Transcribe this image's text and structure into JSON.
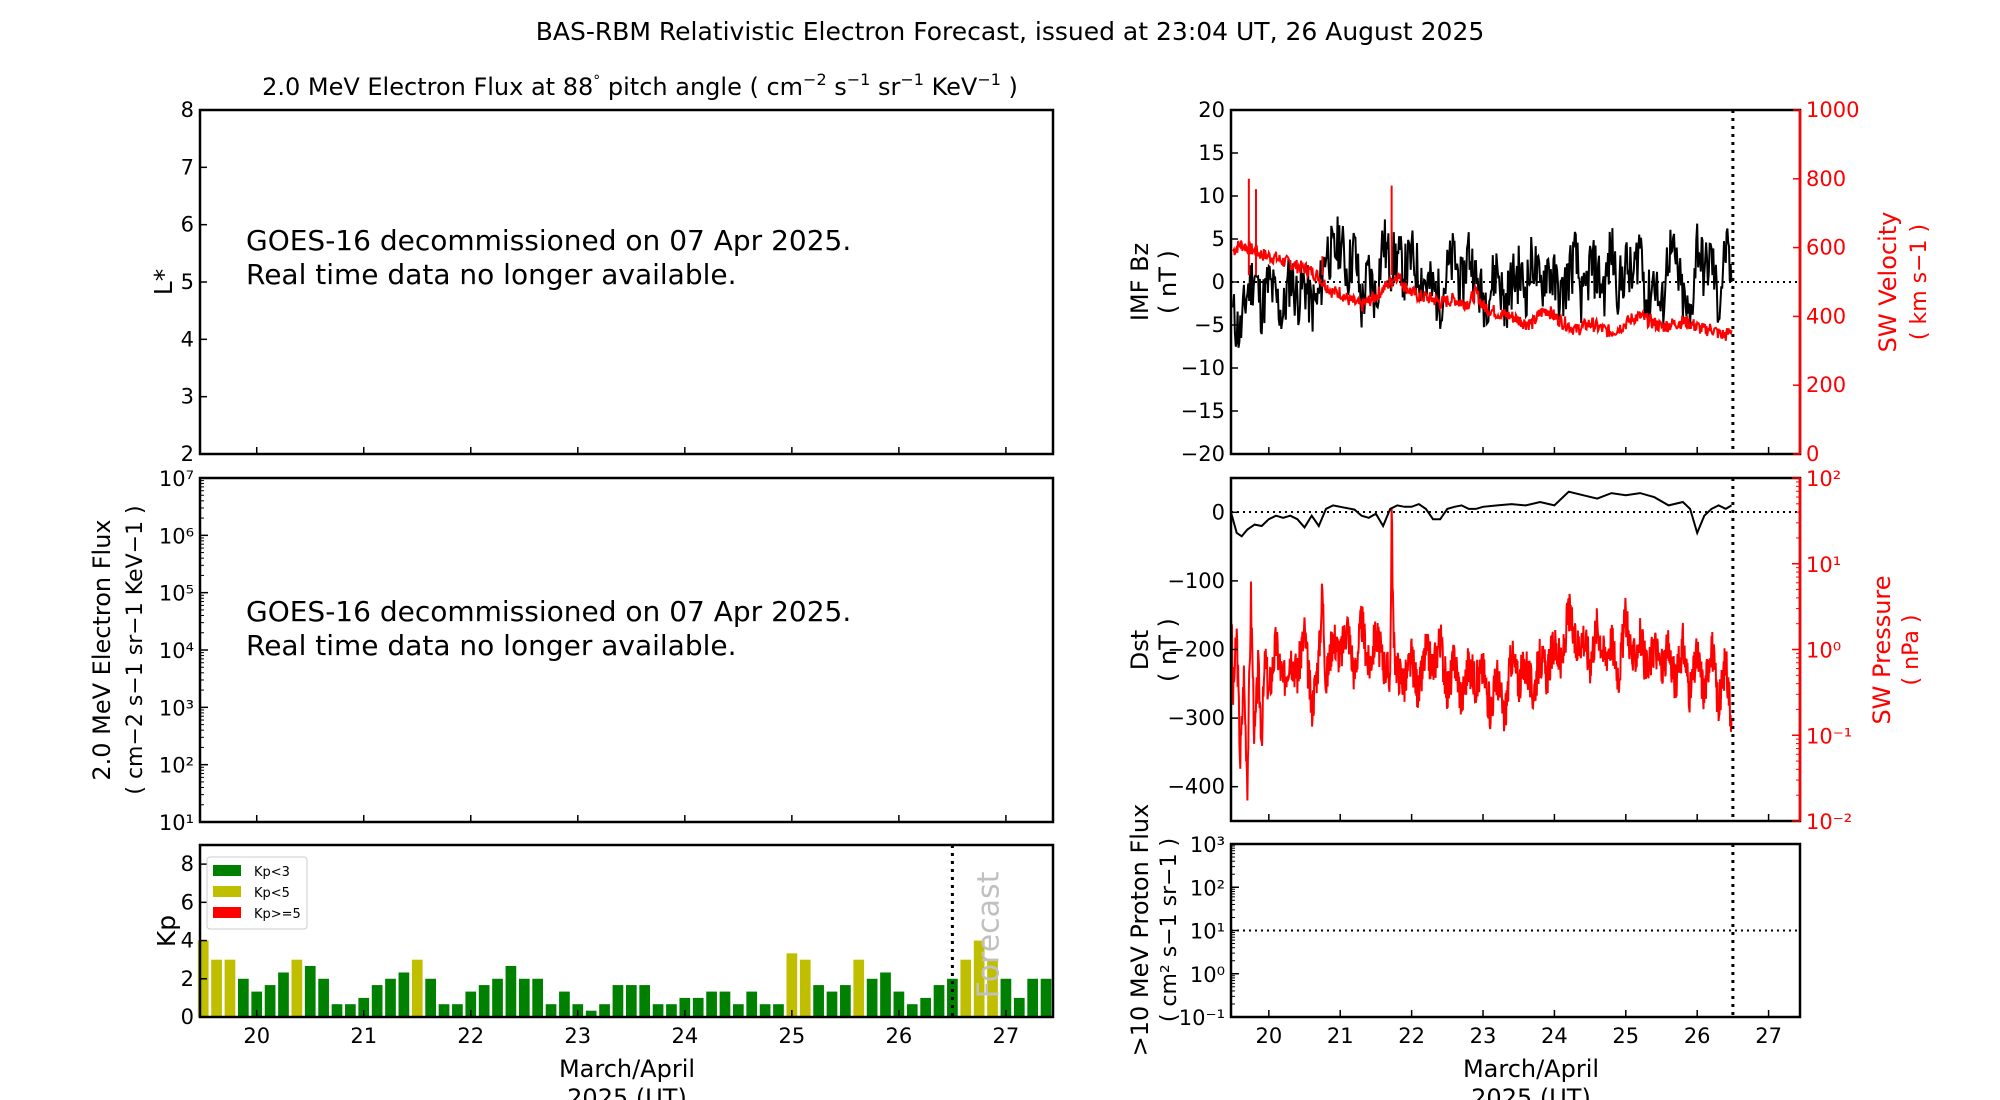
{
  "figure": {
    "title": "BAS-RBM Relativistic Electron Forecast, issued at 23:04 UT, 26 August 2025",
    "xlabel_line1": "March/April",
    "xlabel_line2": "2025 (UT)",
    "x_ticks": [
      "20",
      "21",
      "22",
      "23",
      "24",
      "25",
      "26",
      "27"
    ],
    "now_line_day": 26.5,
    "notice_line1": "GOES-16 decommissioned on 07 Apr 2025.",
    "notice_line2": "Real time data no longer available.",
    "colors": {
      "kp_low": "#008000",
      "kp_mid": "#bfbf00",
      "kp_high": "#ff0000",
      "solar_wind": "#ff0000",
      "forecast_text": "#c0c0c0"
    }
  },
  "chart_data": [
    {
      "id": "lstar",
      "type": "heatmap",
      "title_parts": [
        "2.0 MeV Electron Flux at 88",
        "°",
        " pitch angle ( cm",
        "−2",
        " s",
        "−1",
        " sr",
        "−1",
        " KeV",
        "−1",
        " )"
      ],
      "ylabel": "L*",
      "ylim": [
        2,
        8
      ],
      "yticks": [
        "2",
        "3",
        "4",
        "5",
        "6",
        "7",
        "8"
      ],
      "xlim": [
        19.47,
        27.44
      ],
      "values": []
    },
    {
      "id": "flux",
      "type": "line",
      "ylabel_line1": "2.0 MeV Electron Flux",
      "ylabel_line2": "( cm−2 s−1 sr−1 KeV−1 )",
      "yscale": "log",
      "ylim_exp": [
        1,
        7
      ],
      "yticks": [
        "10¹",
        "10²",
        "10³",
        "10⁴",
        "10⁵",
        "10⁶",
        "10⁷"
      ],
      "xlim": [
        19.47,
        27.44
      ],
      "values": []
    },
    {
      "id": "kp",
      "type": "bar",
      "ylabel": "Kp",
      "ylim": [
        0,
        9
      ],
      "yticks": [
        "0",
        "2",
        "4",
        "6",
        "8"
      ],
      "xlim": [
        19.47,
        27.44
      ],
      "bin_hours": 3,
      "start_day": 19.5,
      "values": [
        4,
        3,
        3,
        2,
        1.33,
        1.67,
        2.33,
        3,
        2.67,
        2,
        0.67,
        0.67,
        1,
        1.67,
        2,
        2.33,
        3,
        2,
        0.67,
        0.67,
        1.33,
        1.67,
        2,
        2.67,
        2,
        2,
        0.67,
        1.33,
        0.67,
        0.33,
        0.67,
        1.67,
        1.67,
        1.67,
        0.67,
        0.67,
        1,
        1,
        1.33,
        1.33,
        0.67,
        1.33,
        0.67,
        0.67,
        3.33,
        3,
        1.67,
        1.33,
        1.67,
        3,
        2,
        2.33,
        1.33,
        0.67,
        1,
        1.67,
        2,
        3,
        4,
        3,
        2,
        1,
        2,
        2
      ],
      "forecast_label": "Forecast",
      "legend": [
        {
          "label": "Kp<3",
          "color": "#008000"
        },
        {
          "label": "Kp<5",
          "color": "#bfbf00"
        },
        {
          "label": "Kp>=5",
          "color": "#ff0000"
        }
      ],
      "legend_position": "top-left"
    },
    {
      "id": "imf",
      "type": "line",
      "ylabel_line1": "IMF Bz",
      "ylabel_line2": "( nT )",
      "ylim": [
        -20,
        20
      ],
      "yticks": [
        "−20",
        "−15",
        "−10",
        "−5",
        "0",
        "5",
        "10",
        "15",
        "20"
      ],
      "y2label_line1": "SW Velocity",
      "y2label_line2": "( km s−1 )",
      "y2lim": [
        0,
        1000
      ],
      "y2ticks": [
        "0",
        "200",
        "400",
        "600",
        "800",
        "1000"
      ],
      "xlim": [
        19.47,
        27.44
      ],
      "series": [
        {
          "name": "IMF Bz",
          "color": "#000000",
          "x": [
            19.5,
            19.6,
            19.7,
            19.8,
            19.9,
            20.0,
            20.1,
            20.2,
            20.3,
            20.4,
            20.5,
            20.6,
            20.7,
            20.8,
            20.9,
            21.0,
            21.1,
            21.2,
            21.3,
            21.4,
            21.5,
            21.6,
            21.7,
            21.8,
            21.9,
            22.0,
            22.1,
            22.2,
            22.3,
            22.4,
            22.5,
            22.6,
            22.7,
            22.8,
            22.9,
            23.0,
            23.1,
            23.2,
            23.3,
            23.4,
            23.5,
            23.6,
            23.7,
            23.8,
            23.9,
            24.0,
            24.1,
            24.2,
            24.3,
            24.4,
            24.5,
            24.6,
            24.7,
            24.8,
            24.9,
            25.0,
            25.1,
            25.2,
            25.3,
            25.4,
            25.5,
            25.6,
            25.7,
            25.8,
            25.9,
            26.0,
            26.1,
            26.2,
            26.3,
            26.4,
            26.48
          ],
          "values": [
            -4,
            -6,
            -1,
            1,
            -3,
            0,
            -2,
            -4,
            1,
            -2,
            0,
            -3,
            -2,
            4,
            3,
            5,
            1,
            4,
            -3,
            1,
            -2,
            5,
            2,
            3,
            1,
            3,
            1,
            0,
            -1,
            -2,
            1,
            3,
            -1,
            4,
            0,
            -2,
            -1,
            2,
            -3,
            0,
            1,
            -1,
            3,
            -1,
            2,
            0,
            -2,
            1,
            3,
            -3,
            2,
            1,
            -1,
            4,
            -1,
            2,
            0,
            5,
            -3,
            1,
            -4,
            4,
            2,
            -2,
            -5,
            5,
            1,
            3,
            -3,
            4,
            0
          ]
        },
        {
          "name": "SW Velocity",
          "color": "#ff0000",
          "x": [
            19.5,
            19.6,
            19.7,
            19.8,
            19.9,
            20.0,
            20.1,
            20.2,
            20.3,
            20.4,
            20.5,
            20.6,
            20.7,
            20.8,
            20.9,
            21.0,
            21.1,
            21.2,
            21.3,
            21.4,
            21.5,
            21.6,
            21.7,
            21.8,
            21.9,
            22.0,
            22.1,
            22.2,
            22.3,
            22.4,
            22.5,
            22.6,
            22.7,
            22.8,
            22.9,
            23.0,
            23.1,
            23.2,
            23.3,
            23.4,
            23.5,
            23.6,
            23.7,
            23.8,
            23.9,
            24.0,
            24.1,
            24.2,
            24.3,
            24.4,
            24.5,
            24.6,
            24.7,
            24.8,
            24.9,
            25.0,
            25.1,
            25.2,
            25.3,
            25.4,
            25.5,
            25.6,
            25.7,
            25.8,
            25.9,
            26.0,
            26.1,
            26.2,
            26.3,
            26.4,
            26.48
          ],
          "values": [
            590,
            610,
            600,
            590,
            580,
            575,
            570,
            560,
            555,
            545,
            540,
            530,
            515,
            490,
            470,
            470,
            450,
            440,
            430,
            445,
            460,
            480,
            500,
            520,
            490,
            470,
            460,
            455,
            450,
            440,
            445,
            450,
            440,
            440,
            470,
            430,
            420,
            410,
            405,
            400,
            390,
            380,
            380,
            410,
            420,
            400,
            385,
            375,
            360,
            370,
            380,
            370,
            360,
            355,
            365,
            380,
            395,
            400,
            390,
            380,
            370,
            375,
            380,
            385,
            380,
            370,
            360,
            365,
            350,
            345,
            360
          ]
        },
        {
          "name": "SW Velocity spikes",
          "color": "#ff0000",
          "x": [
            19.72,
            19.82,
            20.75,
            21.72
          ],
          "values": [
            800,
            770,
            575,
            780
          ]
        }
      ]
    },
    {
      "id": "dst",
      "type": "line",
      "ylabel_line1": "Dst",
      "ylabel_line2": "( nT )",
      "ylim": [
        -450,
        50
      ],
      "yticks": [
        "−400",
        "−300",
        "−200",
        "−100",
        "0"
      ],
      "y2label_line1": "SW Pressure",
      "y2label_line2": "( nPa )",
      "y2scale": "log",
      "y2lim_exp": [
        -2,
        2
      ],
      "y2ticks": [
        "10⁻²",
        "10⁻¹",
        "10⁰",
        "10¹",
        "10²"
      ],
      "xlim": [
        19.47,
        27.44
      ],
      "series": [
        {
          "name": "Dst",
          "color": "#000000",
          "x": [
            19.47,
            19.55,
            19.62,
            19.7,
            19.8,
            19.9,
            20.0,
            20.1,
            20.2,
            20.3,
            20.4,
            20.5,
            20.6,
            20.7,
            20.8,
            20.9,
            21.0,
            21.1,
            21.2,
            21.3,
            21.4,
            21.5,
            21.6,
            21.7,
            21.8,
            21.9,
            22.0,
            22.1,
            22.2,
            22.3,
            22.4,
            22.5,
            22.6,
            22.7,
            22.8,
            22.9,
            23.0,
            23.2,
            23.4,
            23.6,
            23.8,
            24.0,
            24.2,
            24.4,
            24.6,
            24.8,
            25.0,
            25.2,
            25.4,
            25.6,
            25.8,
            25.9,
            26.0,
            26.1,
            26.2,
            26.3,
            26.4,
            26.48
          ],
          "values": [
            0,
            -30,
            -35,
            -25,
            -18,
            -20,
            -10,
            -5,
            -8,
            -5,
            -10,
            -22,
            -5,
            -20,
            5,
            10,
            8,
            6,
            4,
            -5,
            -8,
            -2,
            -20,
            5,
            10,
            8,
            8,
            12,
            5,
            -10,
            -10,
            5,
            8,
            10,
            5,
            5,
            8,
            10,
            12,
            10,
            15,
            10,
            30,
            25,
            20,
            28,
            25,
            28,
            22,
            10,
            15,
            5,
            -30,
            -5,
            5,
            10,
            5,
            10
          ]
        },
        {
          "name": "SW Pressure",
          "color": "#ff0000",
          "x": [
            19.47,
            19.5,
            19.55,
            19.6,
            19.65,
            19.7,
            19.75,
            19.8,
            19.85,
            19.9,
            19.95,
            20.0,
            20.1,
            20.2,
            20.3,
            20.4,
            20.5,
            20.6,
            20.7,
            20.75,
            20.8,
            20.9,
            21.0,
            21.1,
            21.2,
            21.3,
            21.4,
            21.5,
            21.6,
            21.7,
            21.72,
            21.75,
            21.8,
            21.9,
            22.0,
            22.1,
            22.2,
            22.3,
            22.4,
            22.5,
            22.6,
            22.7,
            22.8,
            22.9,
            23.0,
            23.1,
            23.2,
            23.3,
            23.4,
            23.5,
            23.6,
            23.7,
            23.8,
            23.9,
            24.0,
            24.1,
            24.2,
            24.3,
            24.4,
            24.5,
            24.6,
            24.7,
            24.8,
            24.9,
            25.0,
            25.1,
            25.2,
            25.3,
            25.4,
            25.5,
            25.6,
            25.7,
            25.8,
            25.9,
            26.0,
            26.1,
            26.2,
            26.3,
            26.4,
            26.48
          ],
          "values": [
            3,
            0.3,
            1.5,
            0.05,
            0.5,
            0.03,
            4,
            0.08,
            0.6,
            0.1,
            0.8,
            0.3,
            1.2,
            0.4,
            0.9,
            0.5,
            1.6,
            0.2,
            0.8,
            5,
            0.4,
            1.5,
            0.8,
            2,
            0.5,
            2.2,
            0.6,
            1.5,
            0.7,
            0.5,
            40,
            1,
            0.6,
            0.4,
            0.8,
            0.3,
            1,
            0.6,
            1.4,
            0.3,
            0.8,
            0.25,
            0.7,
            0.4,
            0.6,
            0.2,
            0.5,
            0.15,
            0.9,
            0.4,
            0.7,
            0.3,
            0.8,
            0.5,
            1.2,
            0.6,
            3,
            1,
            1.5,
            0.7,
            2,
            0.8,
            1.3,
            0.5,
            2.5,
            0.7,
            1.4,
            0.5,
            1.2,
            0.6,
            1,
            0.4,
            1.2,
            0.3,
            0.9,
            0.3,
            1.3,
            0.2,
            0.8,
            0.15
          ]
        }
      ]
    },
    {
      "id": "proton",
      "type": "line",
      "ylabel_line1": ">10 MeV Proton Flux",
      "ylabel_line2": "( cm² s−1 sr−1 )",
      "yscale": "log",
      "ylim_exp": [
        -1,
        3
      ],
      "yticks": [
        "10⁻¹",
        "10⁰",
        "10¹",
        "10²",
        "10³"
      ],
      "threshold": 10,
      "xlim": [
        19.47,
        27.44
      ],
      "values": []
    }
  ]
}
